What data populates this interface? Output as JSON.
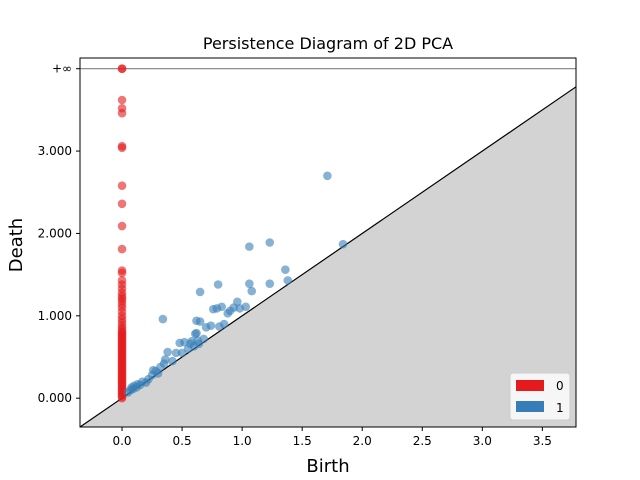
{
  "chart_data": {
    "type": "scatter",
    "title": "Persistence Diagram of 2D PCA",
    "xlabel": "Birth",
    "ylabel": "Death",
    "xlim": [
      -0.35,
      3.78
    ],
    "ylim": [
      -0.35,
      4.13
    ],
    "x_ticks": [
      0.0,
      0.5,
      1.0,
      1.5,
      2.0,
      2.5,
      3.0,
      3.5
    ],
    "x_tick_labels": [
      "0.0",
      "0.5",
      "1.0",
      "1.5",
      "2.0",
      "2.5",
      "3.0",
      "3.5"
    ],
    "y_ticks": [
      0.0,
      1.0,
      2.0,
      3.0
    ],
    "y_tick_labels": [
      "0.000",
      "1.000",
      "2.000",
      "3.000"
    ],
    "infinity_value": 4.0,
    "infinity_label": "+∞",
    "diagonal": true,
    "legend_position": "lower-right",
    "series": [
      {
        "name": "0",
        "color": "#e41a1c",
        "points": [
          [
            0,
            0
          ],
          [
            0,
            0.02
          ],
          [
            0,
            0.04
          ],
          [
            0,
            0.06
          ],
          [
            0,
            0.08
          ],
          [
            0,
            0.1
          ],
          [
            0,
            0.12
          ],
          [
            0,
            0.14
          ],
          [
            0,
            0.16
          ],
          [
            0,
            0.18
          ],
          [
            0,
            0.2
          ],
          [
            0,
            0.22
          ],
          [
            0,
            0.24
          ],
          [
            0,
            0.26
          ],
          [
            0,
            0.28
          ],
          [
            0,
            0.3
          ],
          [
            0,
            0.32
          ],
          [
            0,
            0.34
          ],
          [
            0,
            0.36
          ],
          [
            0,
            0.38
          ],
          [
            0,
            0.4
          ],
          [
            0,
            0.42
          ],
          [
            0,
            0.44
          ],
          [
            0,
            0.46
          ],
          [
            0,
            0.48
          ],
          [
            0,
            0.5
          ],
          [
            0,
            0.52
          ],
          [
            0,
            0.54
          ],
          [
            0,
            0.56
          ],
          [
            0,
            0.58
          ],
          [
            0,
            0.6
          ],
          [
            0,
            0.62
          ],
          [
            0,
            0.64
          ],
          [
            0,
            0.66
          ],
          [
            0,
            0.68
          ],
          [
            0,
            0.7
          ],
          [
            0,
            0.72
          ],
          [
            0,
            0.74
          ],
          [
            0,
            0.76
          ],
          [
            0,
            0.78
          ],
          [
            0,
            0.8
          ],
          [
            0,
            0.82
          ],
          [
            0,
            0.85
          ],
          [
            0,
            0.88
          ],
          [
            0,
            0.92
          ],
          [
            0,
            0.96
          ],
          [
            0,
            1.0
          ],
          [
            0,
            1.05
          ],
          [
            0,
            1.1
          ],
          [
            0,
            1.14
          ],
          [
            0,
            1.18
          ],
          [
            0,
            1.21
          ],
          [
            0,
            1.24
          ],
          [
            0,
            1.28
          ],
          [
            0,
            1.33
          ],
          [
            0,
            1.38
          ],
          [
            0,
            1.43
          ],
          [
            0,
            1.52
          ],
          [
            0,
            1.55
          ],
          [
            0,
            1.81
          ],
          [
            0,
            2.09
          ],
          [
            0,
            2.36
          ],
          [
            0,
            2.58
          ],
          [
            0,
            3.04
          ],
          [
            0,
            3.06
          ],
          [
            0,
            3.46
          ],
          [
            0,
            3.52
          ],
          [
            0,
            3.62
          ],
          [
            0,
            4.0
          ],
          [
            0,
            4.0
          ]
        ]
      },
      {
        "name": "1",
        "color": "#377eb8",
        "points": [
          [
            0.05,
            0.07
          ],
          [
            0.07,
            0.1
          ],
          [
            0.08,
            0.13
          ],
          [
            0.09,
            0.11
          ],
          [
            0.1,
            0.15
          ],
          [
            0.12,
            0.13
          ],
          [
            0.13,
            0.17
          ],
          [
            0.15,
            0.16
          ],
          [
            0.17,
            0.2
          ],
          [
            0.2,
            0.19
          ],
          [
            0.22,
            0.23
          ],
          [
            0.25,
            0.28
          ],
          [
            0.26,
            0.34
          ],
          [
            0.28,
            0.33
          ],
          [
            0.3,
            0.3
          ],
          [
            0.32,
            0.38
          ],
          [
            0.35,
            0.42
          ],
          [
            0.36,
            0.47
          ],
          [
            0.38,
            0.56
          ],
          [
            0.34,
            0.96
          ],
          [
            0.42,
            0.45
          ],
          [
            0.45,
            0.55
          ],
          [
            0.48,
            0.67
          ],
          [
            0.5,
            0.55
          ],
          [
            0.52,
            0.68
          ],
          [
            0.55,
            0.6
          ],
          [
            0.57,
            0.66
          ],
          [
            0.58,
            0.69
          ],
          [
            0.6,
            0.63
          ],
          [
            0.61,
            0.78
          ],
          [
            0.62,
            0.79
          ],
          [
            0.62,
            0.94
          ],
          [
            0.63,
            0.7
          ],
          [
            0.64,
            0.66
          ],
          [
            0.65,
            0.93
          ],
          [
            0.65,
            1.29
          ],
          [
            0.68,
            0.72
          ],
          [
            0.7,
            0.86
          ],
          [
            0.74,
            0.88
          ],
          [
            0.76,
            1.08
          ],
          [
            0.79,
            1.09
          ],
          [
            0.8,
            1.38
          ],
          [
            0.81,
            0.87
          ],
          [
            0.83,
            1.11
          ],
          [
            0.85,
            0.9
          ],
          [
            0.88,
            1.03
          ],
          [
            0.9,
            1.06
          ],
          [
            0.93,
            1.1
          ],
          [
            0.96,
            1.17
          ],
          [
            0.98,
            1.09
          ],
          [
            1.03,
            1.11
          ],
          [
            1.06,
            1.84
          ],
          [
            1.06,
            1.39
          ],
          [
            1.08,
            1.3
          ],
          [
            1.23,
            1.89
          ],
          [
            1.23,
            1.39
          ],
          [
            1.36,
            1.56
          ],
          [
            1.38,
            1.43
          ],
          [
            1.71,
            2.7
          ],
          [
            1.84,
            1.87
          ]
        ]
      }
    ]
  }
}
